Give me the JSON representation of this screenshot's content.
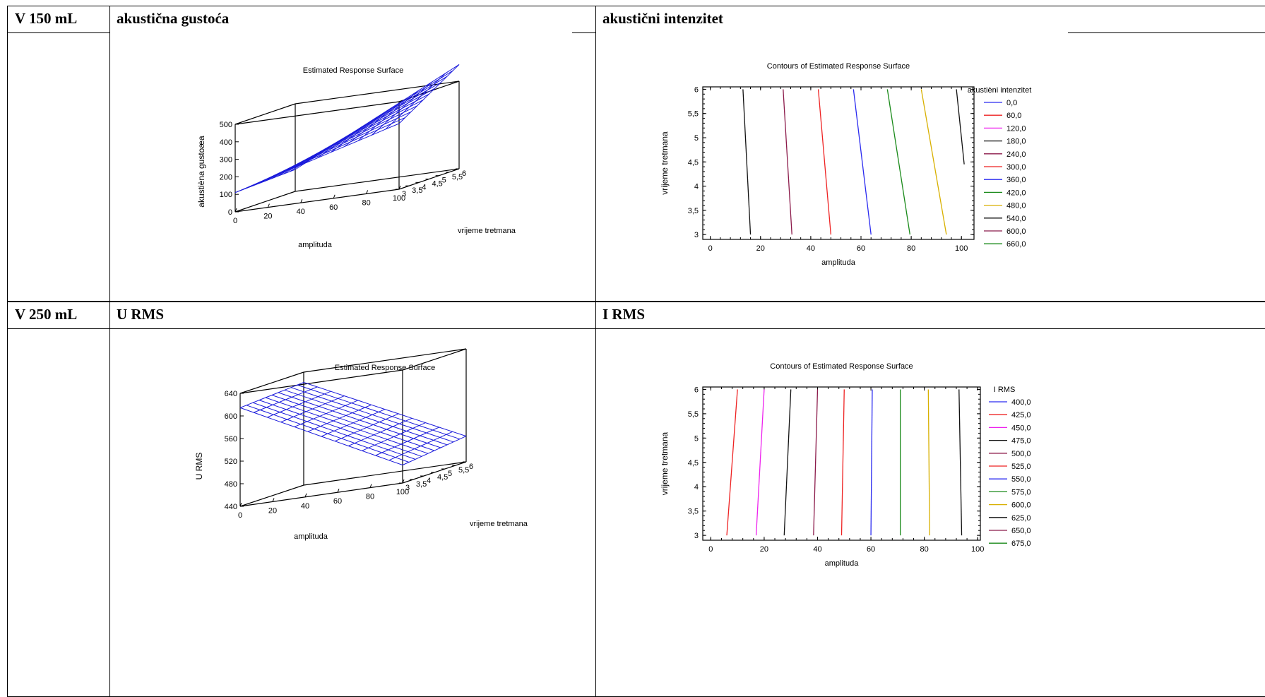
{
  "table": {
    "rows": [
      {
        "label": "V 150 mL",
        "col1": "akustična gustoća",
        "col2": "akustični intenzitet"
      },
      {
        "label": "V 250 mL",
        "col1": "U RMS",
        "col2": "I RMS"
      }
    ]
  },
  "chart_data": [
    {
      "type": "surface3d",
      "title": "Estimated Response Surface",
      "xlabel": "amplituda",
      "ylabel": "vrijeme tretmana",
      "zlabel": "akustièna gustoæa",
      "xticks": [
        "0",
        "20",
        "40",
        "60",
        "80",
        "100"
      ],
      "yticks": [
        "3",
        "3,5",
        "4",
        "4,5",
        "5",
        "5,5",
        "6"
      ],
      "zticks": [
        "0",
        "100",
        "200",
        "300",
        "400",
        "500"
      ],
      "xlim": [
        0,
        100
      ],
      "ylim": [
        3,
        6
      ],
      "zlim": [
        0,
        500
      ],
      "surface_corners": {
        "x0_y3": 110,
        "x100_y3": 375,
        "x0_y6": 125,
        "x100_y6": 595
      },
      "color": "#1a1adb"
    },
    {
      "type": "contour",
      "title": "Contours of Estimated Response Surface",
      "xlabel": "amplituda",
      "ylabel": "vrijeme tretmana",
      "legend_title": "akustièni intenzitet",
      "xticks": [
        "0",
        "20",
        "40",
        "60",
        "80",
        "100"
      ],
      "yticks": [
        "3",
        "3,5",
        "4",
        "4,5",
        "5",
        "5,5",
        "6"
      ],
      "xlim": [
        -3,
        105
      ],
      "ylim": [
        2.9,
        6.05
      ],
      "legend": [
        {
          "label": "0,0",
          "color": "#2a2af0"
        },
        {
          "label": "60,0",
          "color": "#ee2222"
        },
        {
          "label": "120,0",
          "color": "#ee22ee"
        },
        {
          "label": "180,0",
          "color": "#111111"
        },
        {
          "label": "240,0",
          "color": "#8b1a4a"
        },
        {
          "label": "300,0",
          "color": "#ee2222"
        },
        {
          "label": "360,0",
          "color": "#2a2af0"
        },
        {
          "label": "420,0",
          "color": "#1a8a1a"
        },
        {
          "label": "480,0",
          "color": "#d8b000"
        },
        {
          "label": "540,0",
          "color": "#111111"
        },
        {
          "label": "600,0",
          "color": "#8b1a4a"
        },
        {
          "label": "660,0",
          "color": "#1a8a1a"
        }
      ],
      "lines": [
        {
          "x_at_y3": 16,
          "x_at_y6": 13,
          "y_min": 3,
          "y_max": 6,
          "color": "#111111"
        },
        {
          "x_at_y3": 32.5,
          "x_at_y6": 29,
          "y_min": 3,
          "y_max": 6,
          "color": "#8b1a4a"
        },
        {
          "x_at_y3": 48,
          "x_at_y6": 43,
          "y_min": 3,
          "y_max": 6,
          "color": "#ee2222"
        },
        {
          "x_at_y3": 64,
          "x_at_y6": 57,
          "y_min": 3,
          "y_max": 6,
          "color": "#2a2af0"
        },
        {
          "x_at_y3": 79.5,
          "x_at_y6": 70.5,
          "y_min": 3,
          "y_max": 6,
          "color": "#1a8a1a"
        },
        {
          "x_at_y3": 94,
          "x_at_y6": 84,
          "y_min": 3,
          "y_max": 6,
          "color": "#d8b000"
        },
        {
          "x_at_y3": 104,
          "x_at_y6": 98,
          "y_min": 4.45,
          "y_max": 6,
          "color": "#111111"
        }
      ]
    },
    {
      "type": "surface3d",
      "title": "Estimated Response Surface",
      "xlabel": "amplituda",
      "ylabel": "vrijeme tretmana",
      "zlabel": "U RMS",
      "xticks": [
        "0",
        "20",
        "40",
        "60",
        "80",
        "100"
      ],
      "yticks": [
        "3",
        "3,5",
        "4",
        "4,5",
        "5",
        "5,5",
        "6"
      ],
      "zticks": [
        "440",
        "480",
        "520",
        "560",
        "600",
        "640"
      ],
      "xlim": [
        0,
        100
      ],
      "ylim": [
        3,
        6
      ],
      "zlim": [
        440,
        660
      ],
      "surface_corners": {
        "x0_y3": 632,
        "x100_y3": 475,
        "x0_y6": 640,
        "x100_y6": 490
      },
      "color": "#1a1adb"
    },
    {
      "type": "contour",
      "title": "Contours of Estimated Response Surface",
      "xlabel": "amplituda",
      "ylabel": "vrijeme tretmana",
      "legend_title": "I RMS",
      "xticks": [
        "0",
        "20",
        "40",
        "60",
        "80",
        "100"
      ],
      "yticks": [
        "3",
        "3,5",
        "4",
        "4,5",
        "5",
        "5,5",
        "6"
      ],
      "xlim": [
        -3,
        101
      ],
      "ylim": [
        2.9,
        6.05
      ],
      "legend": [
        {
          "label": "400,0",
          "color": "#2a2af0"
        },
        {
          "label": "425,0",
          "color": "#ee2222"
        },
        {
          "label": "450,0",
          "color": "#ee22ee"
        },
        {
          "label": "475,0",
          "color": "#111111"
        },
        {
          "label": "500,0",
          "color": "#8b1a4a"
        },
        {
          "label": "525,0",
          "color": "#ee2222"
        },
        {
          "label": "550,0",
          "color": "#2a2af0"
        },
        {
          "label": "575,0",
          "color": "#1a8a1a"
        },
        {
          "label": "600,0",
          "color": "#d8b000"
        },
        {
          "label": "625,0",
          "color": "#111111"
        },
        {
          "label": "650,0",
          "color": "#8b1a4a"
        },
        {
          "label": "675,0",
          "color": "#1a8a1a"
        }
      ],
      "lines": [
        {
          "x_at_y3": 6,
          "x_at_y6": 10,
          "y_min": 3,
          "y_max": 6,
          "color": "#ee2222"
        },
        {
          "x_at_y3": 17,
          "x_at_y6": 20,
          "y_min": 3,
          "y_max": 6,
          "color": "#ee22ee"
        },
        {
          "x_at_y3": 27.5,
          "x_at_y6": 30,
          "y_min": 3,
          "y_max": 6,
          "color": "#111111"
        },
        {
          "x_at_y3": 38.5,
          "x_at_y6": 40,
          "y_min": 3,
          "y_max": 6,
          "color": "#8b1a4a"
        },
        {
          "x_at_y3": 49,
          "x_at_y6": 50,
          "y_min": 3,
          "y_max": 6,
          "color": "#ee2222"
        },
        {
          "x_at_y3": 60,
          "x_at_y6": 60.5,
          "y_min": 3,
          "y_max": 6,
          "color": "#2a2af0"
        },
        {
          "x_at_y3": 71,
          "x_at_y6": 71,
          "y_min": 3,
          "y_max": 6,
          "color": "#1a8a1a"
        },
        {
          "x_at_y3": 82,
          "x_at_y6": 81.5,
          "y_min": 3,
          "y_max": 6,
          "color": "#d8b000"
        },
        {
          "x_at_y3": 94,
          "x_at_y6": 93,
          "y_min": 3,
          "y_max": 6,
          "color": "#111111"
        }
      ]
    }
  ]
}
